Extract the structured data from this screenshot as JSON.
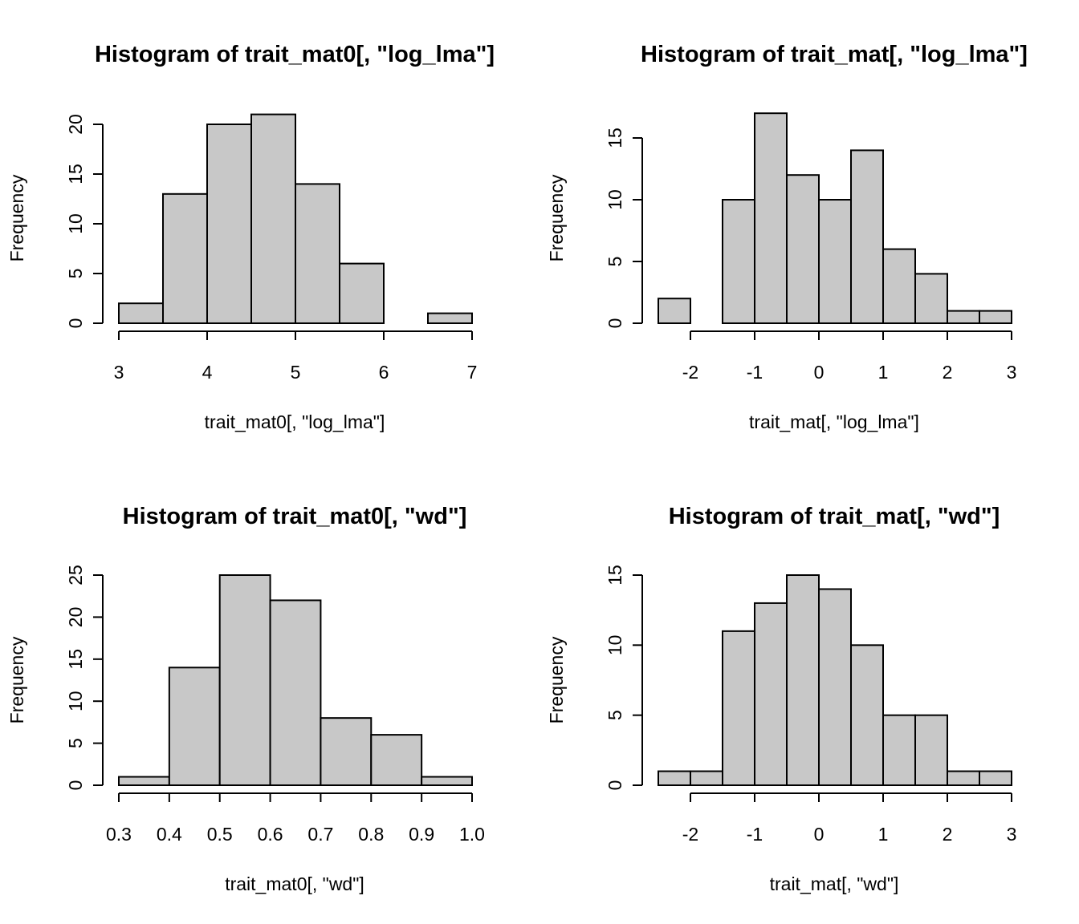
{
  "chart_data": [
    {
      "type": "bar",
      "title": "Histogram of trait_mat0[, \"log_lma\"]",
      "xlabel": "trait_mat0[, \"log_lma\"]",
      "ylabel": "Frequency",
      "breaks": [
        3,
        3.5,
        4,
        4.5,
        5,
        5.5,
        6,
        6.5,
        7
      ],
      "values": [
        2,
        13,
        20,
        21,
        14,
        6,
        0,
        1
      ],
      "xlim": [
        3,
        7
      ],
      "ylim": [
        0,
        20
      ],
      "xticks": [
        3,
        4,
        5,
        6,
        7
      ],
      "xtick_labels": [
        "3",
        "4",
        "5",
        "6",
        "7"
      ],
      "yticks": [
        0,
        5,
        10,
        15,
        20
      ],
      "ytick_labels": [
        "0",
        "5",
        "10",
        "15",
        "20"
      ]
    },
    {
      "type": "bar",
      "title": "Histogram of trait_mat[, \"log_lma\"]",
      "xlabel": "trait_mat[, \"log_lma\"]",
      "ylabel": "Frequency",
      "breaks": [
        -2.5,
        -2,
        -1.5,
        -1,
        -0.5,
        0,
        0.5,
        1,
        1.5,
        2,
        2.5,
        3
      ],
      "values": [
        2,
        0,
        10,
        17,
        12,
        10,
        14,
        6,
        4,
        1,
        1
      ],
      "xlim": [
        -2,
        3
      ],
      "ylim": [
        0,
        15
      ],
      "xticks": [
        -2,
        -1,
        0,
        1,
        2,
        3
      ],
      "xtick_labels": [
        "-2",
        "-1",
        "0",
        "1",
        "2",
        "3"
      ],
      "yticks": [
        0,
        5,
        10,
        15
      ],
      "ytick_labels": [
        "0",
        "5",
        "10",
        "15"
      ]
    },
    {
      "type": "bar",
      "title": "Histogram of trait_mat0[, \"wd\"]",
      "xlabel": "trait_mat0[, \"wd\"]",
      "ylabel": "Frequency",
      "breaks": [
        0.3,
        0.4,
        0.5,
        0.6,
        0.7,
        0.8,
        0.9,
        1.0
      ],
      "values": [
        1,
        14,
        25,
        22,
        8,
        6,
        1
      ],
      "xlim": [
        0.3,
        1.0
      ],
      "ylim": [
        0,
        25
      ],
      "xticks": [
        0.3,
        0.4,
        0.5,
        0.6,
        0.7,
        0.8,
        0.9,
        1.0
      ],
      "xtick_labels": [
        "0.3",
        "0.4",
        "0.5",
        "0.6",
        "0.7",
        "0.8",
        "0.9",
        "1.0"
      ],
      "yticks": [
        0,
        5,
        10,
        15,
        20,
        25
      ],
      "ytick_labels": [
        "0",
        "5",
        "10",
        "15",
        "20",
        "25"
      ]
    },
    {
      "type": "bar",
      "title": "Histogram of trait_mat[, \"wd\"]",
      "xlabel": "trait_mat[, \"wd\"]",
      "ylabel": "Frequency",
      "breaks": [
        -2.5,
        -2,
        -1.5,
        -1,
        -0.5,
        0,
        0.5,
        1,
        1.5,
        2,
        2.5,
        3
      ],
      "values": [
        1,
        1,
        11,
        13,
        15,
        14,
        10,
        5,
        5,
        1,
        1
      ],
      "xlim": [
        -2,
        3
      ],
      "ylim": [
        0,
        15
      ],
      "xticks": [
        -2,
        -1,
        0,
        1,
        2,
        3
      ],
      "xtick_labels": [
        "-2",
        "-1",
        "0",
        "1",
        "2",
        "3"
      ],
      "yticks": [
        0,
        5,
        10,
        15
      ],
      "ytick_labels": [
        "0",
        "5",
        "10",
        "15"
      ]
    }
  ],
  "colors": {
    "bar_fill": "#c8c8c8",
    "bar_stroke": "#000000",
    "background": "#ffffff"
  }
}
